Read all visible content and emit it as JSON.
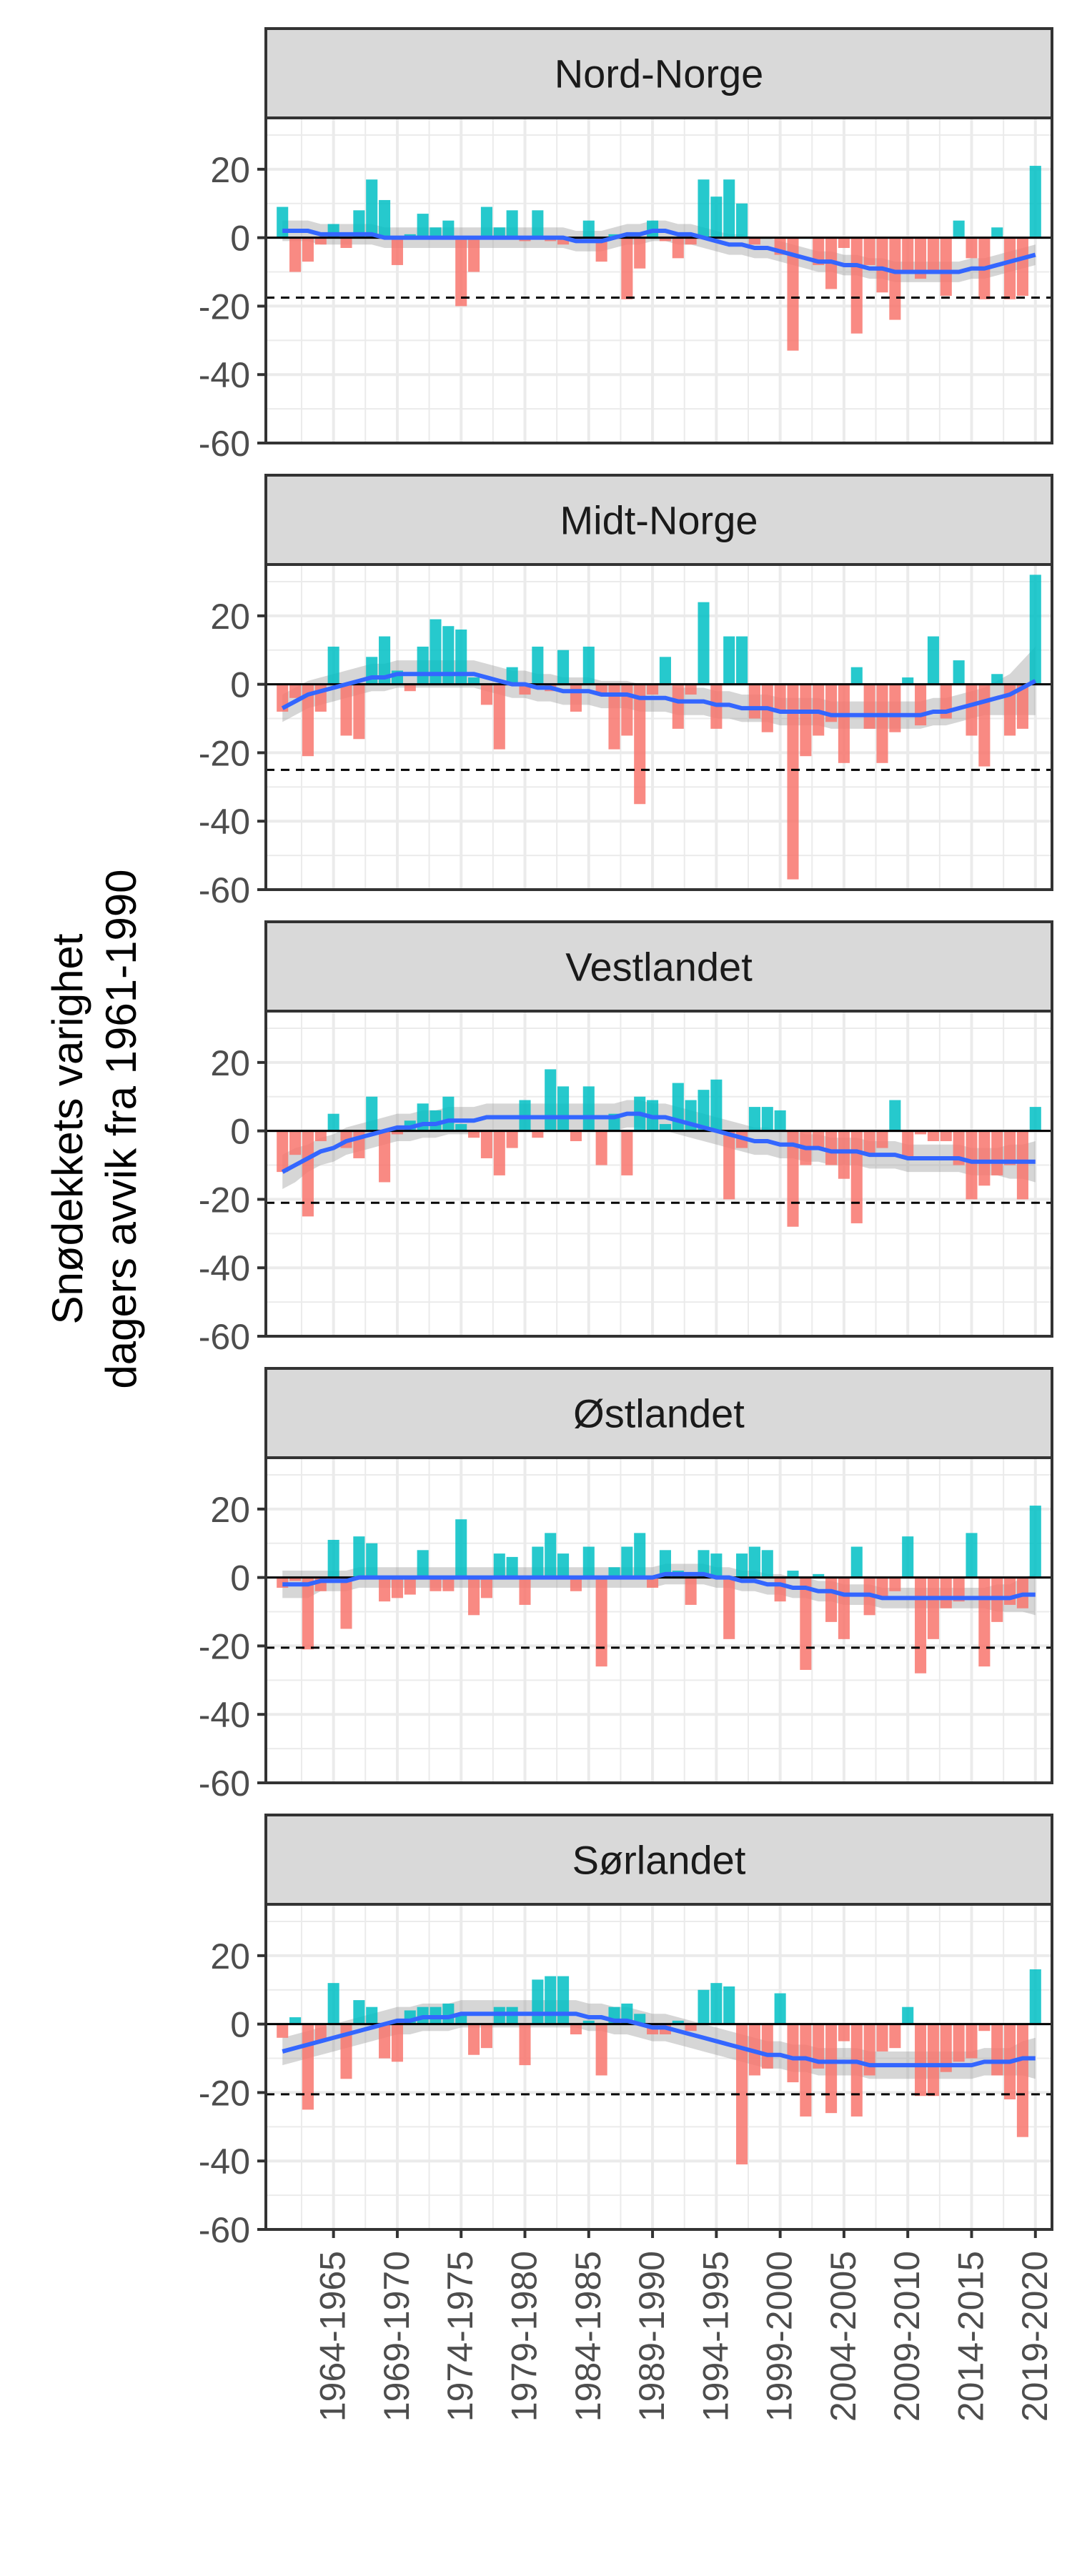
{
  "chart_data": {
    "type": "bar",
    "ylabel_lines": [
      "Snødekkets varighet",
      "dagers avvik fra 1961-1990"
    ],
    "ylim": [
      -60,
      35
    ],
    "yticks": [
      20,
      0,
      -20,
      -40,
      -60
    ],
    "year_range": [
      1961,
      2020
    ],
    "xtick_labels": [
      "1964-1965",
      "1969-1970",
      "1974-1975",
      "1979-1980",
      "1984-1985",
      "1989-1990",
      "1994-1995",
      "1999-2000",
      "2004-2005",
      "2009-2010",
      "2014-2015",
      "2019-2020"
    ],
    "xtick_years": [
      1965,
      1970,
      1975,
      1980,
      1985,
      1990,
      1995,
      2000,
      2005,
      2010,
      2015,
      2020
    ],
    "colors": {
      "positive": "#00BFC4",
      "negative": "#F8766D",
      "smooth": "#3366FF",
      "band": "#999999",
      "strip": "#d9d9d9",
      "grid": "#ebebeb",
      "border": "#333333"
    },
    "grid": true,
    "panels": [
      {
        "title": "Nord-Norge",
        "threshold": -17.5,
        "values": [
          9,
          -10,
          -7,
          -2,
          4,
          -3,
          8,
          17,
          11,
          -8,
          1,
          7,
          3,
          5,
          -20,
          -10,
          9,
          3,
          8,
          -1,
          8,
          -1,
          -2,
          -1,
          5,
          -7,
          1,
          -18,
          -9,
          5,
          -1,
          -6,
          -2,
          17,
          12,
          17,
          10,
          -2,
          0,
          -5,
          -33,
          0,
          -8,
          -15,
          -3,
          -28,
          -8,
          -16,
          -24,
          -10,
          -12,
          -10,
          -17,
          5,
          -6,
          -18,
          3,
          -18,
          -17,
          21
        ],
        "smooth": [
          2,
          2,
          2,
          1,
          1,
          1,
          1,
          1,
          0,
          0,
          0,
          0,
          0,
          0,
          0,
          0,
          0,
          0,
          0,
          0,
          0,
          0,
          0,
          -1,
          -1,
          -1,
          0,
          1,
          1,
          2,
          2,
          1,
          1,
          0,
          -1,
          -2,
          -2,
          -3,
          -3,
          -4,
          -5,
          -6,
          -7,
          -7,
          -8,
          -8,
          -9,
          -9,
          -10,
          -10,
          -10,
          -10,
          -10,
          -10,
          -9,
          -9,
          -8,
          -7,
          -6,
          -5
        ],
        "band": [
          3,
          3,
          3,
          3,
          3,
          3,
          3,
          3,
          3,
          3,
          3,
          3,
          3,
          3,
          3,
          3,
          3,
          3,
          3,
          3,
          3,
          3,
          3,
          3,
          3,
          3,
          3,
          3,
          3,
          3,
          3,
          3,
          3,
          3,
          3,
          3,
          3,
          3,
          3,
          3,
          3,
          3,
          3,
          3,
          3,
          3,
          3,
          3,
          3,
          3,
          3,
          3,
          3,
          3,
          3,
          3,
          3,
          3,
          3,
          3
        ]
      },
      {
        "title": "Midt-Norge",
        "threshold": -25,
        "values": [
          -8,
          -4,
          -21,
          -8,
          11,
          -15,
          -16,
          8,
          14,
          4,
          -2,
          11,
          19,
          17,
          16,
          2,
          -6,
          -19,
          5,
          -3,
          11,
          -2,
          10,
          -8,
          11,
          -3,
          -19,
          -15,
          -35,
          -3,
          8,
          -13,
          -3,
          24,
          -13,
          14,
          14,
          -10,
          -14,
          -8,
          -57,
          -21,
          -15,
          -11,
          -23,
          5,
          -13,
          -23,
          -14,
          2,
          -12,
          14,
          -10,
          7,
          -15,
          -24,
          3,
          -15,
          -13,
          32
        ],
        "smooth": [
          -7,
          -5,
          -3,
          -2,
          -1,
          0,
          1,
          2,
          2,
          3,
          3,
          3,
          3,
          3,
          3,
          3,
          2,
          1,
          0,
          0,
          -1,
          -1,
          -2,
          -2,
          -2,
          -3,
          -3,
          -3,
          -4,
          -4,
          -4,
          -5,
          -5,
          -5,
          -6,
          -6,
          -7,
          -7,
          -7,
          -8,
          -8,
          -8,
          -8,
          -9,
          -9,
          -9,
          -9,
          -9,
          -9,
          -9,
          -9,
          -8,
          -8,
          -7,
          -6,
          -5,
          -4,
          -3,
          -1,
          1
        ],
        "band": [
          4,
          4,
          4,
          4,
          4,
          4,
          4,
          4,
          4,
          4,
          4,
          4,
          4,
          4,
          4,
          4,
          4,
          4,
          4,
          4,
          4,
          4,
          4,
          4,
          4,
          4,
          4,
          4,
          4,
          4,
          4,
          4,
          4,
          4,
          4,
          4,
          4,
          4,
          4,
          4,
          4,
          4,
          4,
          4,
          4,
          4,
          4,
          4,
          4,
          4,
          4,
          4,
          4,
          4,
          4,
          4,
          5,
          6,
          8,
          10
        ]
      },
      {
        "title": "Vestlandet",
        "threshold": -21,
        "values": [
          -12,
          -7,
          -25,
          -3,
          5,
          -5,
          -8,
          10,
          -15,
          -1,
          3,
          8,
          6,
          10,
          2,
          -2,
          -8,
          -13,
          -5,
          9,
          -2,
          18,
          13,
          -3,
          13,
          -10,
          5,
          -13,
          10,
          9,
          2,
          14,
          9,
          12,
          15,
          -20,
          -5,
          7,
          7,
          6,
          -28,
          -10,
          -5,
          -10,
          -14,
          -27,
          -7,
          -5,
          9,
          -8,
          -1,
          -3,
          -3,
          -10,
          -20,
          -16,
          -13,
          -10,
          -20,
          7
        ],
        "smooth": [
          -12,
          -10,
          -8,
          -6,
          -5,
          -3,
          -2,
          -1,
          0,
          1,
          1,
          2,
          2,
          3,
          3,
          3,
          4,
          4,
          4,
          4,
          4,
          4,
          4,
          4,
          4,
          4,
          4,
          5,
          5,
          4,
          4,
          3,
          2,
          1,
          0,
          -1,
          -2,
          -3,
          -3,
          -4,
          -4,
          -5,
          -5,
          -6,
          -6,
          -6,
          -7,
          -7,
          -7,
          -8,
          -8,
          -8,
          -8,
          -8,
          -9,
          -9,
          -9,
          -9,
          -9,
          -9
        ],
        "band": [
          5,
          5,
          4,
          4,
          4,
          4,
          4,
          4,
          4,
          4,
          4,
          4,
          4,
          4,
          4,
          4,
          4,
          4,
          4,
          4,
          4,
          4,
          4,
          4,
          4,
          4,
          4,
          4,
          4,
          4,
          4,
          4,
          4,
          4,
          4,
          4,
          4,
          4,
          4,
          4,
          4,
          4,
          4,
          4,
          4,
          4,
          4,
          4,
          4,
          4,
          4,
          4,
          4,
          4,
          4,
          4,
          4,
          5,
          5,
          6
        ]
      },
      {
        "title": "Østlandet",
        "threshold": -20.5,
        "values": [
          -3,
          -1,
          -21,
          -4,
          11,
          -15,
          12,
          10,
          -7,
          -6,
          -5,
          8,
          -4,
          -4,
          17,
          -11,
          -6,
          7,
          6,
          -8,
          9,
          13,
          7,
          -4,
          9,
          -26,
          3,
          9,
          13,
          -3,
          8,
          2,
          -8,
          8,
          7,
          -18,
          7,
          9,
          8,
          -7,
          2,
          -27,
          1,
          -13,
          -18,
          9,
          -11,
          -6,
          -4,
          12,
          -28,
          -18,
          -9,
          -7,
          13,
          -26,
          -13,
          -8,
          -9,
          21
        ],
        "smooth": [
          -2,
          -2,
          -2,
          -1,
          -1,
          -1,
          0,
          0,
          0,
          0,
          0,
          0,
          0,
          0,
          0,
          0,
          0,
          0,
          0,
          0,
          0,
          0,
          0,
          0,
          0,
          0,
          0,
          0,
          0,
          0,
          1,
          1,
          1,
          1,
          0,
          0,
          -1,
          -1,
          -2,
          -2,
          -3,
          -3,
          -4,
          -4,
          -5,
          -5,
          -5,
          -6,
          -6,
          -6,
          -6,
          -6,
          -6,
          -6,
          -6,
          -6,
          -6,
          -6,
          -5,
          -5
        ],
        "band": [
          4,
          4,
          4,
          3,
          3,
          3,
          3,
          3,
          3,
          3,
          3,
          3,
          3,
          3,
          3,
          3,
          3,
          3,
          3,
          3,
          3,
          3,
          3,
          3,
          3,
          3,
          3,
          3,
          3,
          3,
          3,
          3,
          3,
          3,
          3,
          3,
          3,
          3,
          3,
          3,
          3,
          3,
          3,
          3,
          3,
          3,
          3,
          3,
          3,
          3,
          3,
          3,
          3,
          3,
          3,
          3,
          4,
          4,
          5,
          6
        ]
      },
      {
        "title": "Sørlandet",
        "threshold": -20.5,
        "values": [
          -4,
          2,
          -25,
          -5,
          12,
          -16,
          7,
          5,
          -10,
          -11,
          4,
          5,
          5,
          6,
          3,
          -9,
          -7,
          5,
          5,
          -12,
          13,
          14,
          14,
          -3,
          1,
          -15,
          5,
          6,
          3,
          -3,
          -3,
          1,
          -2,
          10,
          12,
          11,
          -41,
          -15,
          -13,
          9,
          -17,
          -27,
          -13,
          -26,
          -5,
          -27,
          -15,
          -8,
          -7,
          5,
          -21,
          -21,
          -14,
          -11,
          -10,
          -2,
          -15,
          -22,
          -33,
          16
        ],
        "smooth": [
          -8,
          -7,
          -6,
          -5,
          -4,
          -3,
          -2,
          -1,
          0,
          1,
          1,
          2,
          2,
          2,
          3,
          3,
          3,
          3,
          3,
          3,
          3,
          3,
          3,
          3,
          2,
          2,
          1,
          1,
          0,
          -1,
          -1,
          -2,
          -3,
          -4,
          -5,
          -6,
          -7,
          -8,
          -9,
          -9,
          -10,
          -10,
          -11,
          -11,
          -11,
          -11,
          -12,
          -12,
          -12,
          -12,
          -12,
          -12,
          -12,
          -12,
          -12,
          -11,
          -11,
          -11,
          -10,
          -10
        ],
        "band": [
          4,
          4,
          4,
          4,
          4,
          4,
          4,
          4,
          4,
          4,
          4,
          4,
          4,
          4,
          4,
          4,
          4,
          4,
          4,
          4,
          4,
          4,
          4,
          4,
          4,
          4,
          4,
          4,
          4,
          4,
          4,
          4,
          4,
          4,
          4,
          4,
          4,
          4,
          4,
          4,
          4,
          4,
          4,
          4,
          4,
          4,
          4,
          4,
          4,
          4,
          4,
          4,
          4,
          4,
          4,
          4,
          4,
          4,
          5,
          6
        ]
      }
    ]
  }
}
